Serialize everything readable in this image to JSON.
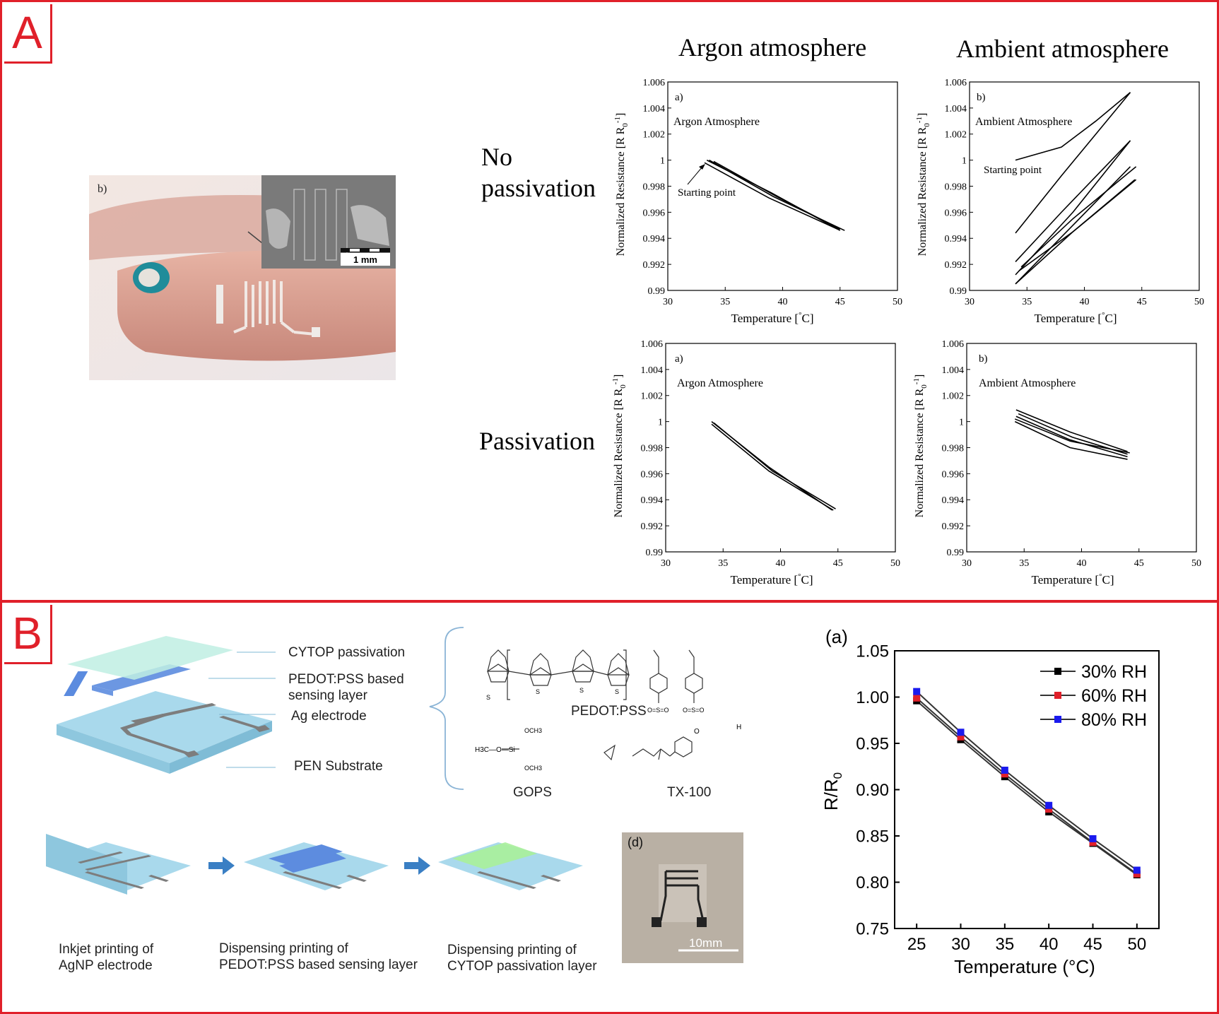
{
  "panel_a": {
    "letter": "A",
    "col_headers": [
      "Argon atmosphere",
      "Ambient atmosphere"
    ],
    "row_labels": [
      [
        "No",
        "passivation"
      ],
      [
        "Passivation"
      ]
    ],
    "photo": {
      "tag": "b)",
      "scale": "1 mm"
    }
  },
  "panel_b": {
    "letter": "B",
    "layers": [
      "CYTOP passivation",
      "PEDOT:PSS based sensing layer",
      "Ag electrode",
      "PEN Substrate"
    ],
    "chem_labels": [
      "PEDOT:PSS",
      "GOPS",
      "TX-100"
    ],
    "steps": [
      [
        "Inkjet printing of",
        "AgNP electrode"
      ],
      [
        "Dispensing printing of",
        "PEDOT:PSS based sensing layer"
      ],
      [
        "Dispensing printing of",
        "CYTOP passivation layer"
      ]
    ],
    "photo": {
      "tag": "(d)",
      "scale": "10mm"
    }
  },
  "chart_data": [
    {
      "type": "line",
      "panel_tag": "a)",
      "in_plot_title": "Argon Atmosphere",
      "annotation": "Starting point",
      "xlabel": "Temperature [°C]",
      "ylabel": "Normalized Resistance [R R0-1]",
      "xlim": [
        30,
        50
      ],
      "ylim": [
        0.99,
        1.006
      ],
      "xticks": [
        "30",
        "35",
        "40",
        "45",
        "50"
      ],
      "yticks": [
        "0.99",
        "0.992",
        "0.994",
        "0.996",
        "0.998",
        "1",
        "1.002",
        "1.004",
        "1.006"
      ],
      "series": [
        {
          "x": [
            33.4,
            39.0,
            45.0
          ],
          "y": [
            1.0,
            0.9975,
            0.9946
          ]
        },
        {
          "x": [
            33.6,
            39.2,
            45.4
          ],
          "y": [
            1.0,
            0.9972,
            0.9946
          ]
        },
        {
          "x": [
            33.2,
            38.8,
            44.8
          ],
          "y": [
            0.9998,
            0.9971,
            0.9947
          ]
        },
        {
          "x": [
            34.0,
            39.5,
            45.0
          ],
          "y": [
            0.9999,
            0.9972,
            0.9947
          ]
        }
      ]
    },
    {
      "type": "line",
      "panel_tag": "b)",
      "in_plot_title": "Ambient Atmosphere",
      "annotation": "Starting point",
      "xlabel": "Temperature [°C]",
      "ylabel": "Normalized Resistance [R R0-1]",
      "xlim": [
        30,
        50
      ],
      "ylim": [
        0.99,
        1.006
      ],
      "xticks": [
        "30",
        "35",
        "40",
        "45",
        "50"
      ],
      "yticks": [
        "0.99",
        "0.992",
        "0.994",
        "0.996",
        "0.998",
        "1",
        "1.002",
        "1.004",
        "1.006"
      ],
      "series": [
        {
          "x": [
            34.0,
            38.0,
            41.0,
            44.0
          ],
          "y": [
            1.0,
            1.001,
            1.003,
            1.0052
          ]
        },
        {
          "x": [
            34.0,
            38.0,
            44.0
          ],
          "y": [
            0.9944,
            0.9988,
            1.0052
          ]
        },
        {
          "x": [
            34.0,
            38.0,
            44.0
          ],
          "y": [
            0.9922,
            0.996,
            1.0015
          ]
        },
        {
          "x": [
            34.0,
            39.0,
            44.0
          ],
          "y": [
            0.9912,
            0.996,
            1.0015
          ]
        },
        {
          "x": [
            34.5,
            39.0,
            44.5
          ],
          "y": [
            0.9918,
            0.9955,
            0.9995
          ]
        },
        {
          "x": [
            34.0,
            39.0,
            44.0
          ],
          "y": [
            0.9905,
            0.995,
            0.9995
          ]
        },
        {
          "x": [
            34.3,
            39.0,
            44.4
          ],
          "y": [
            0.9915,
            0.9945,
            0.9985
          ]
        },
        {
          "x": [
            34.0,
            39.0,
            44.5
          ],
          "y": [
            0.9905,
            0.9945,
            0.9985
          ]
        }
      ]
    },
    {
      "type": "line",
      "panel_tag": "a)",
      "in_plot_title": "Argon Atmosphere",
      "xlabel": "Temperature [°C]",
      "ylabel": "Normalized Resistance [R R0-1]",
      "xlim": [
        30,
        50
      ],
      "ylim": [
        0.99,
        1.006
      ],
      "xticks": [
        "30",
        "35",
        "40",
        "45",
        "50"
      ],
      "yticks": [
        "0.99",
        "0.992",
        "0.994",
        "0.996",
        "0.998",
        "1",
        "1.002",
        "1.004",
        "1.006"
      ],
      "series": [
        {
          "x": [
            34.0,
            39.0,
            44.5
          ],
          "y": [
            1.0,
            0.9965,
            0.9932
          ]
        },
        {
          "x": [
            34.2,
            39.3,
            44.8
          ],
          "y": [
            0.9999,
            0.9962,
            0.9933
          ]
        },
        {
          "x": [
            34.0,
            39.0,
            44.6
          ],
          "y": [
            0.9998,
            0.9962,
            0.9932
          ]
        }
      ]
    },
    {
      "type": "line",
      "panel_tag": "b)",
      "in_plot_title": "Ambient Atmosphere",
      "xlabel": "Temperature [°C]",
      "ylabel": "Normalized Resistance [R R0-1]",
      "xlim": [
        30,
        50
      ],
      "ylim": [
        0.99,
        1.006
      ],
      "xticks": [
        "30",
        "35",
        "40",
        "45",
        "50"
      ],
      "yticks": [
        "0.99",
        "0.992",
        "0.994",
        "0.996",
        "0.998",
        "1",
        "1.002",
        "1.004",
        "1.006"
      ],
      "series": [
        {
          "x": [
            34.3,
            39.0,
            44.0
          ],
          "y": [
            1.0009,
            0.9992,
            0.9977
          ]
        },
        {
          "x": [
            34.5,
            39.2,
            44.0
          ],
          "y": [
            1.0006,
            0.9988,
            0.9975
          ]
        },
        {
          "x": [
            34.3,
            39.0,
            44.0
          ],
          "y": [
            1.0004,
            0.9986,
            0.9973
          ]
        },
        {
          "x": [
            34.2,
            39.0,
            44.2
          ],
          "y": [
            1.0002,
            0.9985,
            0.9976
          ]
        },
        {
          "x": [
            34.2,
            39.0,
            44.0
          ],
          "y": [
            1.0,
            0.998,
            0.9971
          ]
        }
      ]
    },
    {
      "type": "line",
      "panel_tag": "(a)",
      "xlabel": "Temperature (°C)",
      "ylabel": "R/R0",
      "xlim": [
        22.5,
        52.5
      ],
      "ylim": [
        0.75,
        1.05
      ],
      "xticks": [
        "25",
        "30",
        "35",
        "40",
        "45",
        "50"
      ],
      "yticks": [
        "0.75",
        "0.80",
        "0.85",
        "0.90",
        "0.95",
        "1.00",
        "1.05"
      ],
      "x": [
        25,
        30,
        35,
        40,
        45,
        50
      ],
      "series": [
        {
          "name": "30% RH",
          "color": "#000000",
          "values": [
            0.996,
            0.954,
            0.914,
            0.876,
            0.842,
            0.808
          ]
        },
        {
          "name": "60% RH",
          "color": "#e0202a",
          "values": [
            0.999,
            0.957,
            0.917,
            0.879,
            0.843,
            0.809
          ]
        },
        {
          "name": "80% RH",
          "color": "#1a1aee",
          "values": [
            1.006,
            0.962,
            0.921,
            0.883,
            0.847,
            0.813
          ]
        }
      ],
      "legend": "top-right"
    }
  ]
}
